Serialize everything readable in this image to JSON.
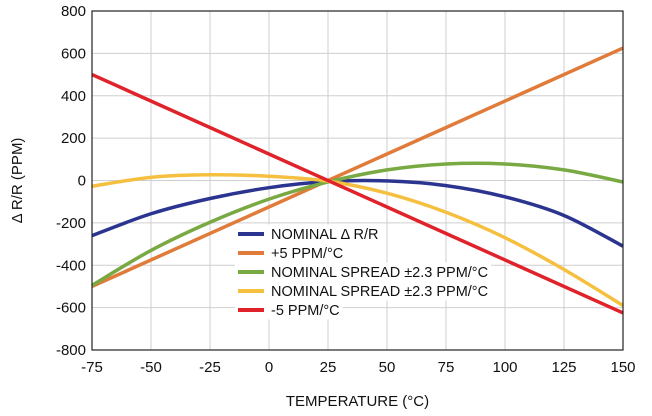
{
  "chart_data": {
    "type": "line",
    "xlabel": "TEMPERATURE (°C)",
    "ylabel": "Δ R/R (PPM)",
    "xlim": [
      -75,
      150
    ],
    "ylim": [
      -800,
      800
    ],
    "xticks": [
      -75,
      -50,
      -25,
      0,
      25,
      50,
      75,
      100,
      125,
      150
    ],
    "yticks": [
      -800,
      -600,
      -400,
      -200,
      0,
      200,
      400,
      600,
      800
    ],
    "xtick_labels": [
      "-75",
      "-50",
      "-25",
      "0",
      "25",
      "50",
      "75",
      "100",
      "125",
      "150"
    ],
    "ytick_labels": [
      "-800",
      "-600",
      "-400",
      "-200",
      "0",
      "200",
      "400",
      "600",
      "800"
    ],
    "grid": true,
    "legend_position": "lower-center",
    "series": [
      {
        "name": "NOMINAL Δ R/R",
        "color": "#2b3590",
        "x": [
          -75,
          -50,
          -25,
          0,
          25,
          50,
          75,
          100,
          125,
          150
        ],
        "y": [
          -260,
          -157,
          -85,
          -34,
          -5,
          -2,
          -24,
          -77,
          -165,
          -310
        ]
      },
      {
        "name": "+5 PPM/°C",
        "color": "#e07b39",
        "x": [
          -75,
          150
        ],
        "y": [
          -500,
          625
        ]
      },
      {
        "name": "NOMINAL SPREAD ±2.3 PPM/°C",
        "color": "#79a943",
        "x": [
          -75,
          -50,
          -25,
          0,
          25,
          50,
          75,
          100,
          125,
          150
        ],
        "y": [
          -495,
          -330,
          -197,
          -88,
          -7,
          50,
          78,
          78,
          50,
          -7
        ]
      },
      {
        "name": "NOMINAL SPREAD ±2.3 PPM/°C",
        "color": "#f5c040",
        "x": [
          -75,
          -50,
          -25,
          0,
          25,
          50,
          75,
          100,
          125,
          150
        ],
        "y": [
          -27,
          15,
          27,
          20,
          -3,
          -60,
          -150,
          -270,
          -420,
          -590
        ]
      },
      {
        "name": "-5 PPM/°C",
        "color": "#e0222a",
        "x": [
          -75,
          150
        ],
        "y": [
          500,
          -625
        ]
      }
    ]
  }
}
